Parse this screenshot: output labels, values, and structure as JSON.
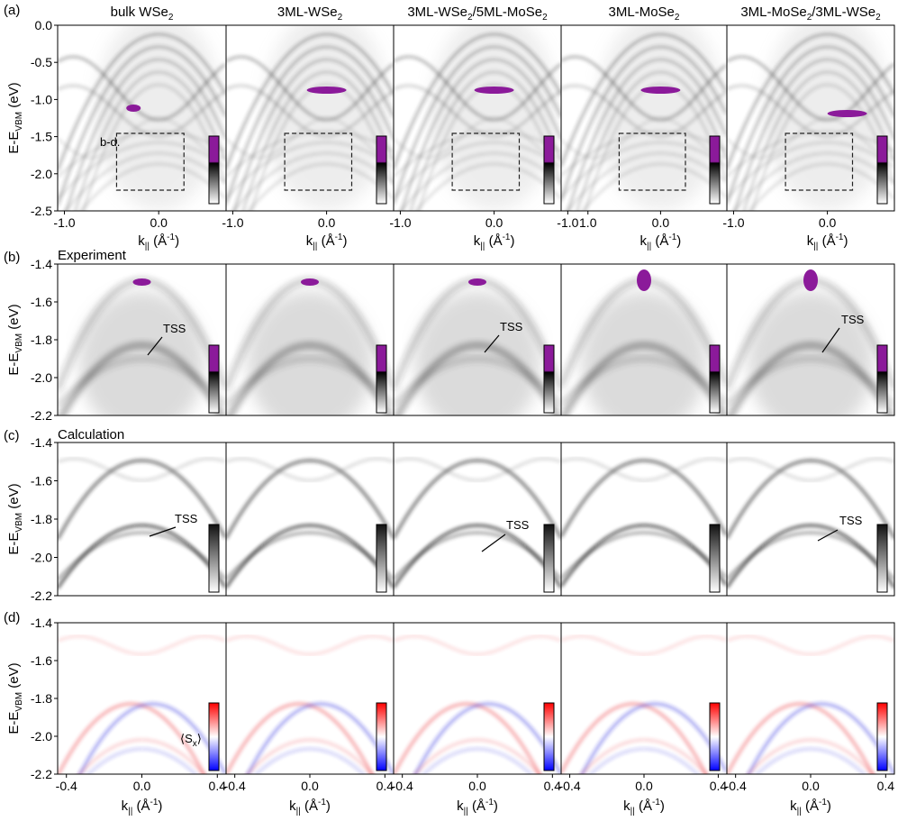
{
  "panel_labels": {
    "a": "(a)",
    "b": "(b)",
    "c": "(c)",
    "d": "(d)"
  },
  "columns": [
    {
      "main": "bulk WSe",
      "sub": "2",
      "tail": "",
      "tail_sub": "",
      "color": "#000000"
    },
    {
      "main": "3ML-WSe",
      "sub": "2",
      "tail": "",
      "tail_sub": "",
      "color": "#e8202a"
    },
    {
      "main": "3ML-WSe",
      "sub": "2",
      "tail": "/5ML-MoSe",
      "tail_sub": "2",
      "color": "#9b2fcf"
    },
    {
      "main": "3ML-MoSe",
      "sub": "2",
      "tail": "",
      "tail_sub": "",
      "color": "#1a1adc"
    },
    {
      "main": "3ML-MoSe",
      "sub": "2",
      "tail": "/3ML-WSe",
      "tail_sub": "2",
      "color": "#9b2fcf"
    }
  ],
  "row_titles": {
    "b": "Experiment",
    "c": "Calculation"
  },
  "box_label": "b-d.",
  "tss_label": "TSS",
  "sx_label": "⟨S",
  "sx_sub": "x",
  "sx_close": "⟩",
  "axis": {
    "ylabel_main": "E-E",
    "ylabel_sub": "VBM",
    "ylabel_unit": " (eV)",
    "xlabel_main": "k",
    "xlabel_sub": "||",
    "xlabel_unit": " (Å",
    "xlabel_exp": "-1",
    "xlabel_close": ")"
  },
  "row_a_yticks": [
    "0.0",
    "-0.5",
    "-1.0",
    "-1.5",
    "-2.0",
    "-2.5"
  ],
  "row_bcd_yticks": [
    "-1.4",
    "-1.6",
    "-1.8",
    "-2.0",
    "-2.2"
  ],
  "row_a_xticks": [
    [
      "-1.0",
      "0.0"
    ],
    [
      "-1.0",
      "0.0"
    ],
    [
      "-1.0",
      "0.0",
      "1.0"
    ],
    [
      "-1.0",
      "0.0"
    ],
    [
      "-1.0",
      "0.0"
    ]
  ],
  "row_d_xticks": [
    "-0.4",
    "0.0",
    "0.4"
  ],
  "colors": {
    "purple": "#8b1a9a",
    "red": "#e8202a",
    "blue": "#1a1adc"
  }
}
